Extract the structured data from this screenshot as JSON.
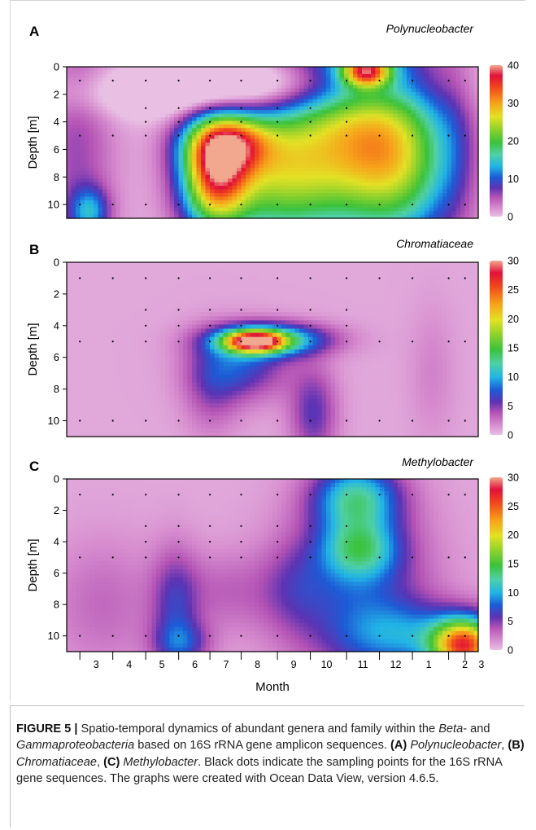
{
  "chart_data": [
    {
      "type": "heatmap",
      "panel_label": "A",
      "title": "Polynucleobacter",
      "ylabel": "Depth [m]",
      "ylim": [
        11,
        0
      ],
      "yticks": [
        0,
        2,
        4,
        6,
        8,
        10
      ],
      "colorbar_ticks": [
        0,
        10,
        20,
        30,
        40
      ],
      "colorbar_range": [
        0,
        40
      ],
      "sample_depths": [
        1,
        3,
        4,
        5,
        10
      ],
      "blobs": [
        {
          "t": 0.0,
          "d": 6,
          "v": 5,
          "st": 0.8,
          "sd": 8
        },
        {
          "t": 0.4,
          "d": 10.5,
          "v": 10,
          "st": 0.4,
          "sd": 1.2
        },
        {
          "t": 4.2,
          "d": 8,
          "v": 27,
          "st": 0.7,
          "sd": 2.6
        },
        {
          "t": 4.6,
          "d": 5.5,
          "v": 20,
          "st": 0.9,
          "sd": 1.5
        },
        {
          "t": 6.0,
          "d": 8,
          "v": 18,
          "st": 1.4,
          "sd": 3.5
        },
        {
          "t": 8.3,
          "d": 4,
          "v": 20,
          "st": 1.6,
          "sd": 5
        },
        {
          "t": 8.8,
          "d": 0.3,
          "v": 26,
          "st": 0.5,
          "sd": 0.8
        },
        {
          "t": 9.8,
          "d": 7,
          "v": 16,
          "st": 1.2,
          "sd": 4
        },
        {
          "t": 6.5,
          "d": 1.5,
          "v": -10,
          "st": 2.6,
          "sd": 1.5
        },
        {
          "t": 1.5,
          "d": 2,
          "v": -3,
          "st": 2.5,
          "sd": 1.2
        },
        {
          "t": 11.5,
          "d": 5,
          "v": 2,
          "st": 0.4,
          "sd": 5
        }
      ]
    },
    {
      "type": "heatmap",
      "panel_label": "B",
      "title": "Chromatiaceae",
      "ylabel": "Depth [m]",
      "ylim": [
        11,
        0
      ],
      "yticks": [
        0,
        2,
        4,
        6,
        8,
        10
      ],
      "colorbar_ticks": [
        0,
        5,
        10,
        15,
        20,
        25,
        30
      ],
      "colorbar_range": [
        0,
        30
      ],
      "sample_depths": [
        1,
        3,
        4,
        5,
        10
      ],
      "blobs": [
        {
          "t": 5.4,
          "d": 5.0,
          "v": 22,
          "st": 0.6,
          "sd": 0.45
        },
        {
          "t": 5.9,
          "d": 4.9,
          "v": 12,
          "st": 1.2,
          "sd": 0.7
        },
        {
          "t": 5.0,
          "d": 6.5,
          "v": 6,
          "st": 1.0,
          "sd": 1.5
        },
        {
          "t": 4.1,
          "d": 8,
          "v": 3,
          "st": 0.6,
          "sd": 2
        },
        {
          "t": 7.2,
          "d": 9.5,
          "v": 5,
          "st": 0.5,
          "sd": 2
        },
        {
          "t": 10.8,
          "d": 7,
          "v": 1.3,
          "st": 0.5,
          "sd": 3
        }
      ]
    },
    {
      "type": "heatmap",
      "panel_label": "C",
      "title": "Methylobacter",
      "ylabel": "Depth [m]",
      "xlabel": "Month",
      "ylim": [
        11,
        0
      ],
      "yticks": [
        0,
        2,
        4,
        6,
        8,
        10
      ],
      "categories": [
        "3",
        "4",
        "5",
        "6",
        "7",
        "8",
        "9",
        "10",
        "11",
        "12",
        "1",
        "2",
        "3"
      ],
      "colorbar_ticks": [
        0,
        5,
        10,
        15,
        20,
        25,
        30
      ],
      "colorbar_range": [
        0,
        30
      ],
      "sample_depths": [
        1,
        3,
        4,
        5,
        10
      ],
      "blobs": [
        {
          "t": 8.5,
          "d": 1.2,
          "v": 10,
          "st": 0.9,
          "sd": 1.5
        },
        {
          "t": 8.6,
          "d": 4.5,
          "v": 8,
          "st": 0.8,
          "sd": 1.3
        },
        {
          "t": 8.5,
          "d": 7,
          "v": 6,
          "st": 1.5,
          "sd": 4
        },
        {
          "t": 10.0,
          "d": 10,
          "v": 6,
          "st": 1.3,
          "sd": 1.5
        },
        {
          "t": 11.8,
          "d": 10.6,
          "v": 24,
          "st": 0.7,
          "sd": 1.2
        },
        {
          "t": 3.0,
          "d": 8,
          "v": 4.5,
          "st": 0.5,
          "sd": 2.5
        },
        {
          "t": 3.2,
          "d": 10.5,
          "v": 5,
          "st": 0.6,
          "sd": 1
        },
        {
          "t": 4.5,
          "d": 7.2,
          "v": 2.3,
          "st": 1.1,
          "sd": 1.8
        },
        {
          "t": 0.8,
          "d": 8,
          "v": 2.2,
          "st": 1.2,
          "sd": 3
        },
        {
          "t": 6.6,
          "d": 7,
          "v": 2.5,
          "st": 0.7,
          "sd": 2
        }
      ]
    }
  ],
  "caption": {
    "figure_label": "FIGURE 5 |",
    "s1": " Spatio-temporal dynamics of abundant genera and family within the ",
    "beta": "Beta",
    "s2": "- and ",
    "gamma": "Gammaproteobacteria",
    "s3": " based on 16S rRNA gene amplicon sequences. ",
    "a_label": "(A)",
    "a_name": "Polynucleobacter",
    "s4": ", ",
    "b_label": "(B)",
    "b_name": "Chromatiaceae",
    "s5": ", ",
    "c_label": "(C)",
    "c_name": "Methylobacter",
    "s6": ". Black dots indicate the sampling points for the 16S rRNA gene sequences. The graphs were created with Ocean Data View, version 4.6.5."
  }
}
